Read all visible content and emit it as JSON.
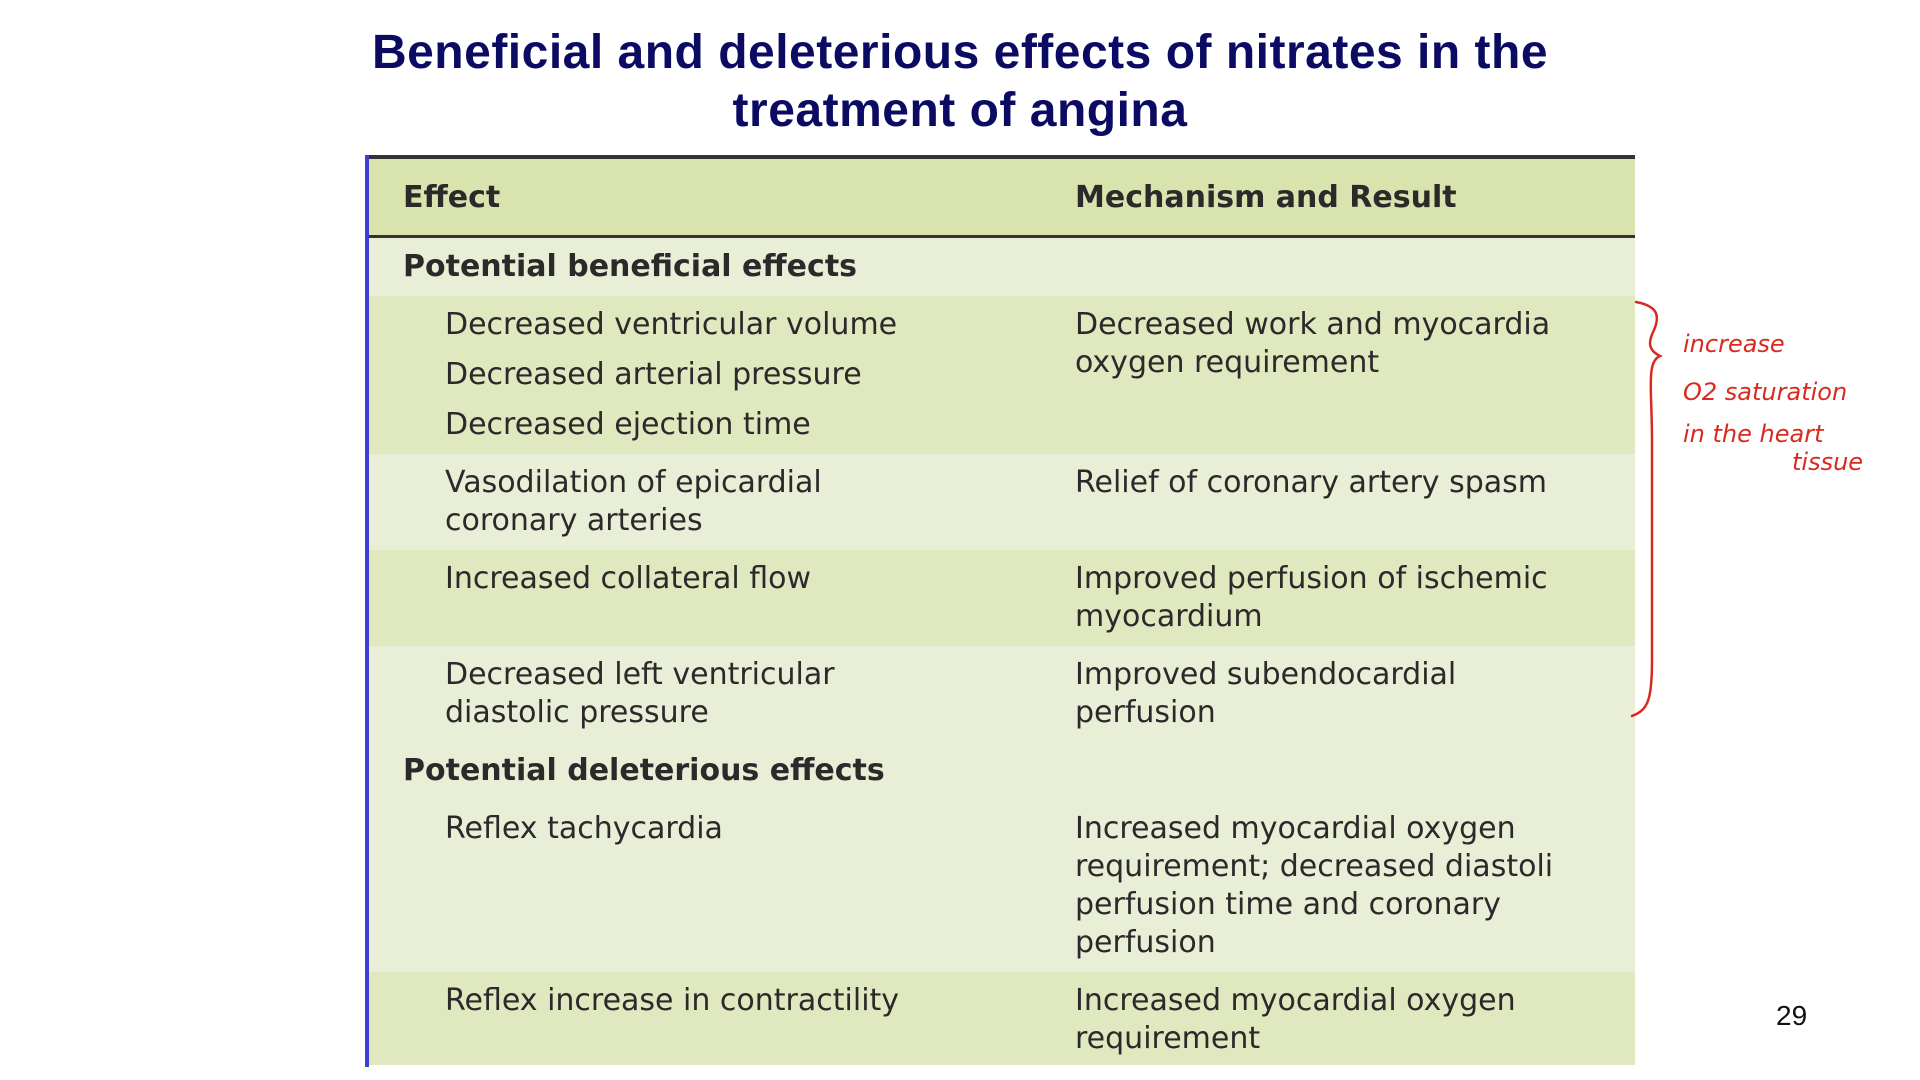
{
  "slide": {
    "title_line1": "Beneficial and deleterious effects of nitrates in the",
    "title_line2": "treatment of angina",
    "page_number": "29"
  },
  "table": {
    "headers": {
      "effect": "Effect",
      "mechanism": "Mechanism and Result"
    },
    "sections": [
      {
        "title": "Potential beneficial effects",
        "rows": [
          {
            "effects": [
              "Decreased ventricular volume",
              "Decreased arterial pressure",
              "Decreased ejection time"
            ],
            "mechanism": [
              "Decreased work and myocardia",
              "oxygen requirement"
            ]
          },
          {
            "effects": [
              "Vasodilation of epicardial",
              "coronary arteries"
            ],
            "mechanism": [
              "Relief of coronary artery spasm"
            ]
          },
          {
            "effects": [
              "Increased collateral flow"
            ],
            "mechanism": [
              "Improved perfusion of ischemic",
              "myocardium"
            ]
          },
          {
            "effects": [
              "Decreased left ventricular",
              "diastolic pressure"
            ],
            "mechanism": [
              "Improved subendocardial",
              "perfusion"
            ]
          }
        ]
      },
      {
        "title": "Potential deleterious effects",
        "rows": [
          {
            "effects": [
              "Reflex tachycardia"
            ],
            "mechanism": [
              "Increased myocardial oxygen",
              "requirement; decreased diastoli",
              "perfusion time and coronary",
              "perfusion"
            ]
          },
          {
            "effects": [
              "Reflex increase in contractility"
            ],
            "mechanism": [
              "Increased myocardial oxygen",
              "requirement"
            ]
          }
        ]
      }
    ]
  },
  "annotation": {
    "lines": [
      "increase",
      "O2 saturation",
      "in the heart",
      "tissue"
    ],
    "color": "#d92a1f"
  },
  "colors": {
    "title": "#0b0b63",
    "header_bg": "#d9e3ad",
    "row_dark": "#dfe8bf",
    "row_light": "#e9efd6",
    "left_rule": "#3e3fd1"
  }
}
